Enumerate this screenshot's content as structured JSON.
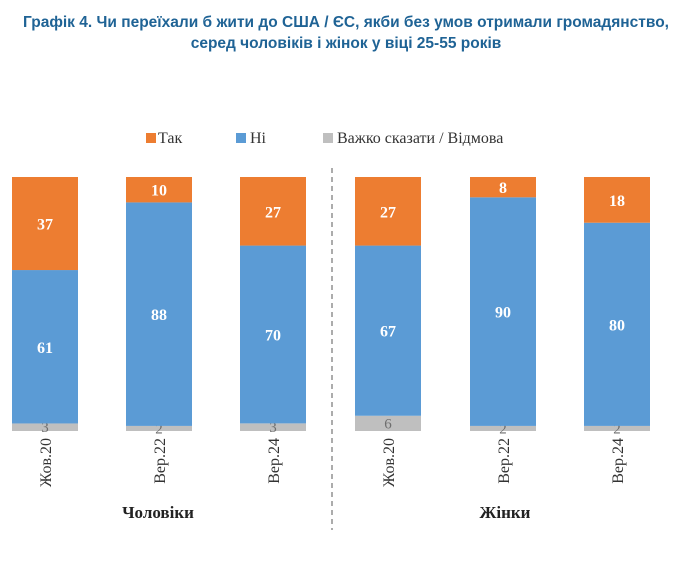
{
  "title": {
    "line1": "Графік 4. Чи переїхали б жити до США / ЄС, якби без умов отримали громадянство,",
    "line2": "серед чоловіків і жінок у віці 25-55 років"
  },
  "colors": {
    "yes": "#ed7d31",
    "no": "#5b9bd5",
    "hard": "#bfbfbf"
  },
  "chart_data": {
    "type": "bar",
    "stacked": true,
    "legend_position": "top",
    "categories": [
      "Жов.20",
      "Вер.22",
      "Вер.24",
      "Жов.20",
      "Вер.22",
      "Вер.24"
    ],
    "groups": [
      {
        "name": "Чоловіки",
        "categories": [
          "Жов.20",
          "Вер.22",
          "Вер.24"
        ]
      },
      {
        "name": "Жінки",
        "categories": [
          "Жов.20",
          "Вер.22",
          "Вер.24"
        ]
      }
    ],
    "series": [
      {
        "name": "Так",
        "values": [
          37,
          10,
          27,
          27,
          8,
          18
        ]
      },
      {
        "name": "Ні",
        "values": [
          61,
          88,
          70,
          67,
          90,
          80
        ]
      },
      {
        "name": "Важко сказати / Відмова",
        "values": [
          3,
          2,
          3,
          6,
          2,
          2
        ]
      }
    ],
    "ylim": [
      0,
      100
    ]
  }
}
